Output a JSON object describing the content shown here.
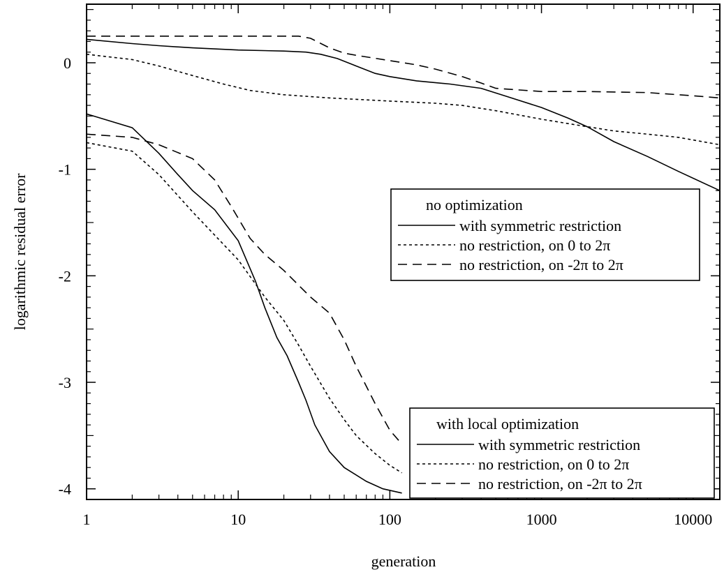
{
  "chart_data": {
    "type": "line",
    "title": "",
    "xlabel": "generation",
    "ylabel": "logarithmic residual error",
    "xscale": "log",
    "xlim": [
      1,
      15000
    ],
    "ylim": [
      -4.1,
      0.55
    ],
    "grid": false,
    "x_ticks": [
      {
        "value": 1,
        "label": "1"
      },
      {
        "value": 10,
        "label": "10"
      },
      {
        "value": 100,
        "label": "100"
      },
      {
        "value": 1000,
        "label": "1000"
      },
      {
        "value": 10000,
        "label": "10000"
      }
    ],
    "y_ticks": [
      {
        "value": 0,
        "label": "0"
      },
      {
        "value": -1,
        "label": "-1"
      },
      {
        "value": -2,
        "label": "-2"
      },
      {
        "value": -3,
        "label": "-3"
      },
      {
        "value": -4,
        "label": "-4"
      }
    ],
    "legends": [
      {
        "id": "upper",
        "placement": "center-right",
        "title": "no optimization",
        "entries": [
          {
            "style": "solid",
            "label": "with symmetric restriction"
          },
          {
            "style": "dotted",
            "label": "no restriction, on  0   to 2π"
          },
          {
            "style": "dashed",
            "label": "no restriction, on -2π  to 2π"
          }
        ]
      },
      {
        "id": "lower",
        "placement": "bottom-right",
        "title": "with local optimization",
        "entries": [
          {
            "style": "solid",
            "label": "with symmetric restriction"
          },
          {
            "style": "dotted",
            "label": "no restriction, on  0   to 2π"
          },
          {
            "style": "dashed",
            "label": "no restriction, on -2π to 2π"
          }
        ]
      }
    ],
    "series": [
      {
        "group": "no optimization",
        "style": "solid",
        "x": [
          1,
          2,
          3,
          5,
          10,
          20,
          28,
          35,
          45,
          60,
          80,
          100,
          150,
          250,
          400,
          600,
          1000,
          1500,
          2000,
          3000,
          5000,
          8000,
          15000
        ],
        "y": [
          0.22,
          0.18,
          0.16,
          0.14,
          0.12,
          0.11,
          0.1,
          0.08,
          0.04,
          -0.03,
          -0.1,
          -0.13,
          -0.17,
          -0.2,
          -0.24,
          -0.32,
          -0.42,
          -0.52,
          -0.6,
          -0.74,
          -0.88,
          -1.02,
          -1.2
        ]
      },
      {
        "group": "no optimization",
        "style": "dotted",
        "x": [
          1,
          2,
          3,
          5,
          8,
          12,
          20,
          40,
          100,
          200,
          300,
          500,
          1000,
          2000,
          3000,
          5000,
          8000,
          15000
        ],
        "y": [
          0.08,
          0.03,
          -0.03,
          -0.12,
          -0.2,
          -0.26,
          -0.3,
          -0.33,
          -0.36,
          -0.38,
          -0.4,
          -0.45,
          -0.53,
          -0.6,
          -0.64,
          -0.67,
          -0.7,
          -0.77
        ]
      },
      {
        "group": "no optimization",
        "style": "dashed",
        "x": [
          1,
          10,
          25,
          30,
          40,
          50,
          60,
          100,
          150,
          200,
          300,
          400,
          500,
          1000,
          2000,
          5000,
          10000,
          15000
        ],
        "y": [
          0.25,
          0.25,
          0.25,
          0.23,
          0.14,
          0.09,
          0.07,
          0.02,
          -0.02,
          -0.06,
          -0.13,
          -0.19,
          -0.24,
          -0.27,
          -0.27,
          -0.28,
          -0.31,
          -0.33
        ]
      },
      {
        "group": "with local optimization",
        "style": "solid",
        "x": [
          1,
          2,
          3,
          4,
          5,
          7,
          10,
          13,
          15,
          18,
          21,
          25,
          28,
          32,
          40,
          50,
          70,
          90,
          120
        ],
        "y": [
          -0.48,
          -0.61,
          -0.85,
          -1.05,
          -1.2,
          -1.38,
          -1.67,
          -2.05,
          -2.3,
          -2.58,
          -2.75,
          -3.0,
          -3.17,
          -3.4,
          -3.65,
          -3.8,
          -3.93,
          -4.0,
          -4.04
        ]
      },
      {
        "group": "with local optimization",
        "style": "dotted",
        "x": [
          1,
          2,
          3,
          5,
          10,
          15,
          20,
          25,
          30,
          40,
          50,
          60,
          80,
          100,
          120
        ],
        "y": [
          -0.75,
          -0.83,
          -1.05,
          -1.4,
          -1.85,
          -2.2,
          -2.42,
          -2.65,
          -2.85,
          -3.15,
          -3.35,
          -3.5,
          -3.67,
          -3.78,
          -3.85
        ]
      },
      {
        "group": "with local optimization",
        "style": "dashed",
        "x": [
          1,
          2,
          3,
          5,
          7,
          9,
          12,
          15,
          20,
          30,
          40,
          50,
          60,
          80,
          100,
          120
        ],
        "y": [
          -0.67,
          -0.7,
          -0.77,
          -0.9,
          -1.1,
          -1.35,
          -1.65,
          -1.8,
          -1.95,
          -2.2,
          -2.35,
          -2.6,
          -2.85,
          -3.2,
          -3.45,
          -3.58
        ]
      }
    ]
  }
}
